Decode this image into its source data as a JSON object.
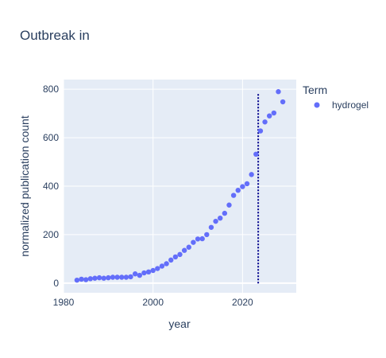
{
  "chart_data": {
    "type": "scatter",
    "title": "Outbreak in",
    "xlabel": "year",
    "ylabel": "normalized publication count",
    "xlim": [
      1980,
      2032
    ],
    "ylim": [
      -40,
      840
    ],
    "xticks": [
      1980,
      2000,
      2020
    ],
    "yticks": [
      0,
      200,
      400,
      600,
      800
    ],
    "grid": true,
    "legend": {
      "title": "Term",
      "placement": "right"
    },
    "series": [
      {
        "name": "hydrogel",
        "color": "#636efa",
        "x": [
          1983,
          1984,
          1985,
          1986,
          1987,
          1988,
          1989,
          1990,
          1991,
          1992,
          1993,
          1994,
          1995,
          1996,
          1997,
          1998,
          1999,
          2000,
          2001,
          2002,
          2003,
          2004,
          2005,
          2006,
          2007,
          2008,
          2009,
          2010,
          2011,
          2012,
          2013,
          2014,
          2015,
          2016,
          2017,
          2018,
          2019,
          2020,
          2021,
          2022,
          2023,
          2024,
          2025,
          2026,
          2027,
          2028,
          2029
        ],
        "y": [
          12,
          16,
          14,
          18,
          20,
          22,
          20,
          22,
          24,
          24,
          24,
          24,
          26,
          38,
          32,
          42,
          46,
          52,
          60,
          70,
          80,
          95,
          108,
          118,
          135,
          148,
          168,
          182,
          183,
          200,
          230,
          255,
          268,
          288,
          322,
          362,
          383,
          398,
          410,
          448,
          532,
          628,
          665,
          690,
          702,
          790,
          748
        ]
      }
    ],
    "annotations": [
      {
        "type": "vertical-dotted-line",
        "x": 2023.5,
        "y_from": -5,
        "y_to": 780,
        "color": "#00008b"
      }
    ]
  }
}
